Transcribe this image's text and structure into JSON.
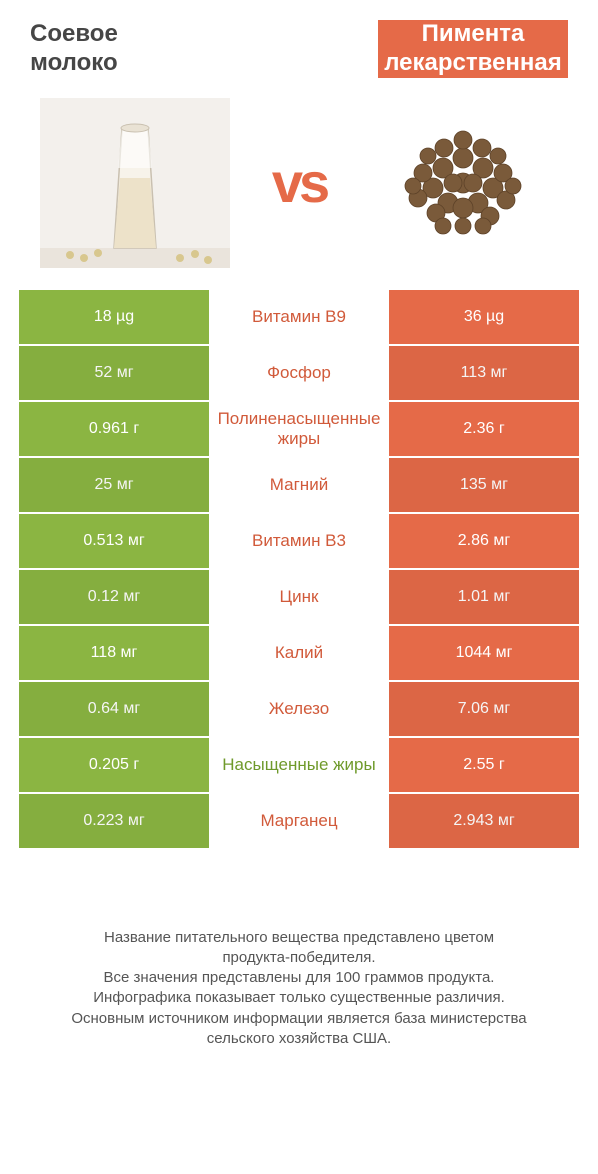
{
  "header": {
    "left_title": "Соевое\nмолоко",
    "right_title": "Пимента\nлекарственная",
    "vs": "vs"
  },
  "colors": {
    "left_bg": "#8bb542",
    "right_bg": "#e56a48",
    "left_text": "#6f9a2b",
    "right_text": "#d15a3a",
    "footnote": "#555555"
  },
  "images": {
    "left_name": "soy-milk-image",
    "right_name": "allspice-image"
  },
  "rows": [
    {
      "left": "18 µg",
      "label": "Витамин B9",
      "right": "36 µg",
      "winner": "right"
    },
    {
      "left": "52 мг",
      "label": "Фосфор",
      "right": "113 мг",
      "winner": "right"
    },
    {
      "left": "0.961 г",
      "label": "Полиненасыщенные жиры",
      "right": "2.36 г",
      "winner": "right"
    },
    {
      "left": "25 мг",
      "label": "Магний",
      "right": "135 мг",
      "winner": "right"
    },
    {
      "left": "0.513 мг",
      "label": "Витамин B3",
      "right": "2.86 мг",
      "winner": "right"
    },
    {
      "left": "0.12 мг",
      "label": "Цинк",
      "right": "1.01 мг",
      "winner": "right"
    },
    {
      "left": "118 мг",
      "label": "Калий",
      "right": "1044 мг",
      "winner": "right"
    },
    {
      "left": "0.64 мг",
      "label": "Железо",
      "right": "7.06 мг",
      "winner": "right"
    },
    {
      "left": "0.205 г",
      "label": "Насыщенные жиры",
      "right": "2.55 г",
      "winner": "left"
    },
    {
      "left": "0.223 мг",
      "label": "Марганец",
      "right": "2.943 мг",
      "winner": "right"
    }
  ],
  "footnote": "Название питательного вещества представлено цветом\nпродукта-победителя.\nВсе значения представлены для 100 граммов продукта.\nИнфографика показывает только существенные различия.\nОсновным источником информации является база министерства\nсельского хозяйства США."
}
